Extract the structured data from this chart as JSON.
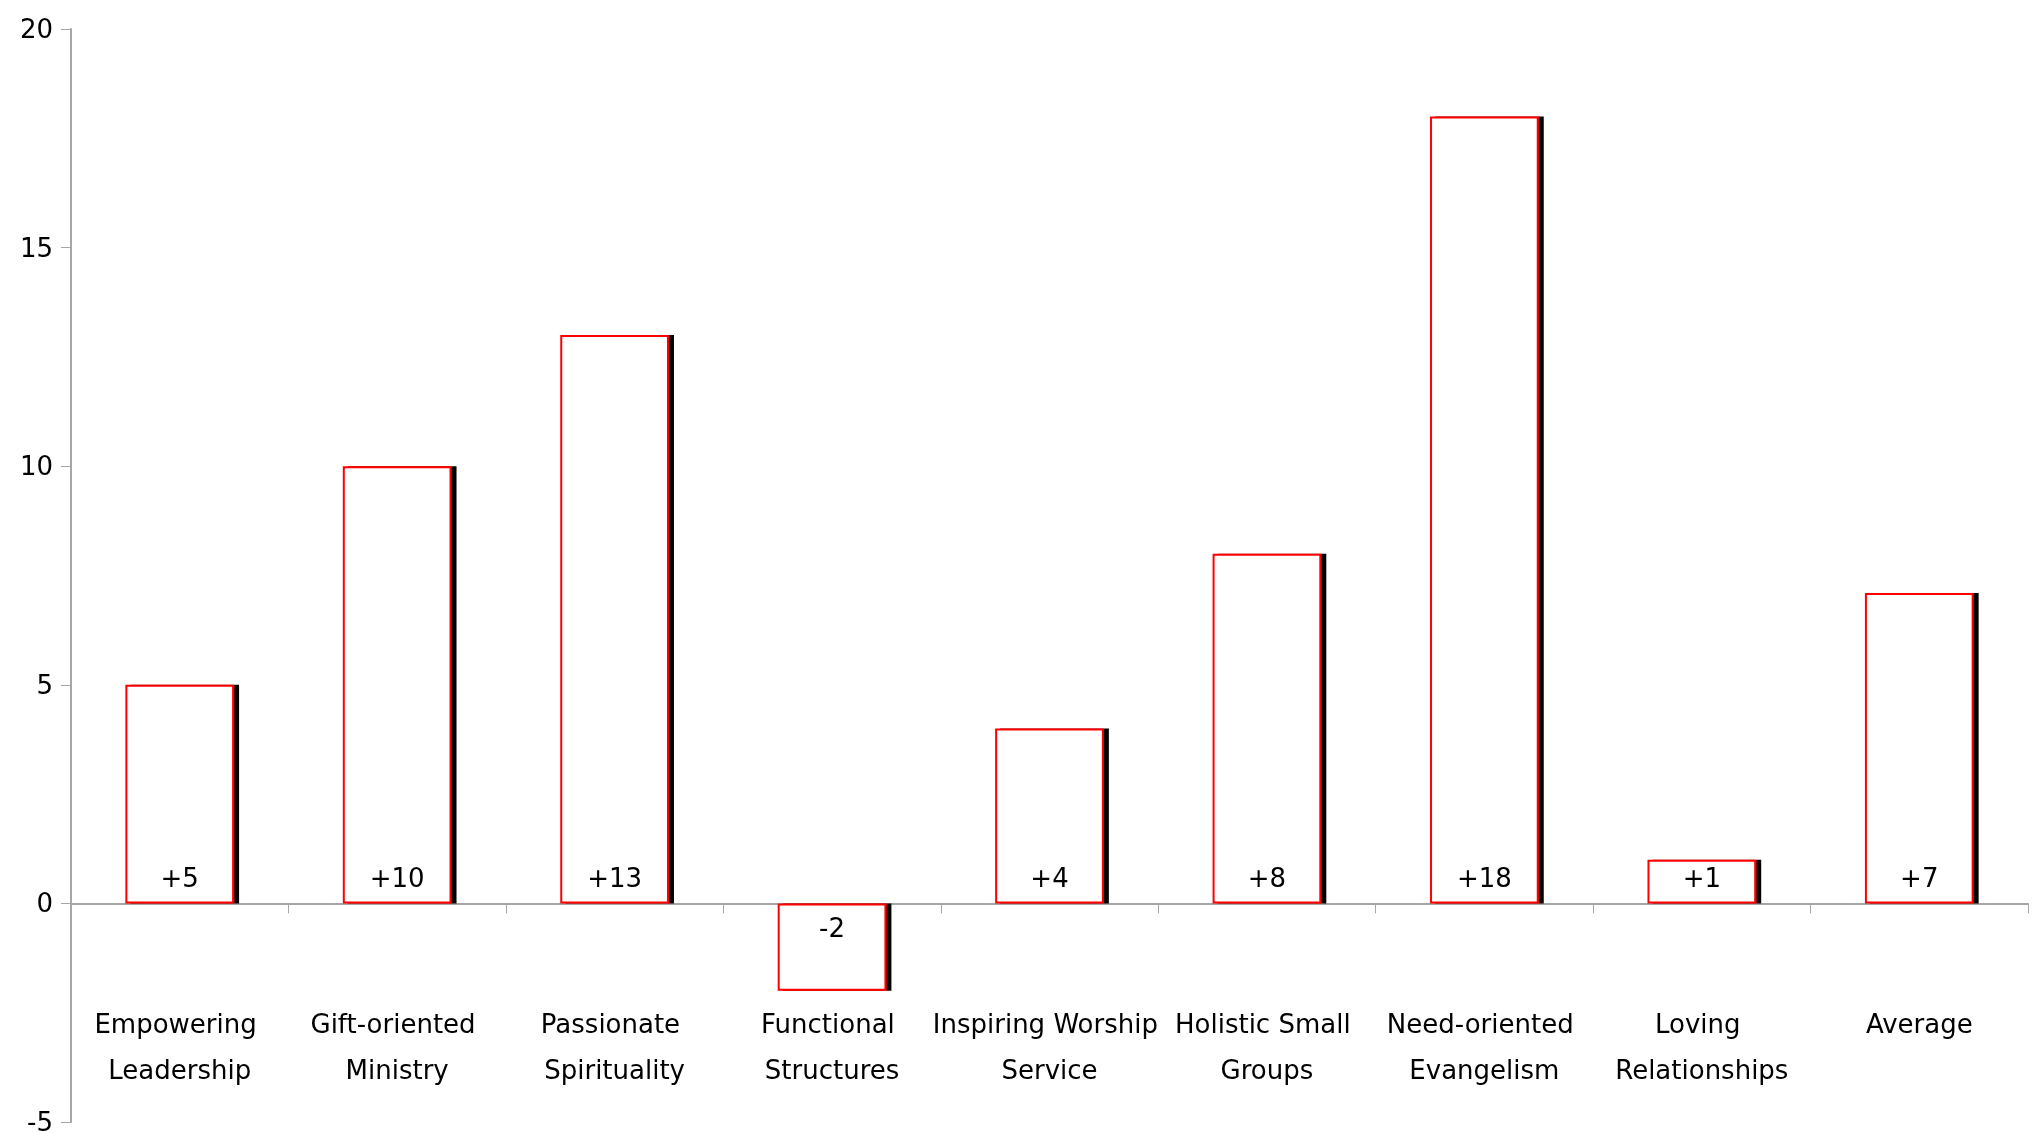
{
  "chart_data": {
    "type": "bar",
    "categories": [
      "Empowering Leadership",
      "Gift-oriented Ministry",
      "Passionate Spirituality",
      "Functional Structures",
      "Inspiring Worship Service",
      "Holistic Small Groups",
      "Need-oriented Evangelism",
      "Loving Relationships",
      "Average"
    ],
    "values": [
      5,
      10,
      13,
      -2,
      4,
      8,
      18,
      1,
      7.1
    ],
    "value_labels": [
      "+5",
      "+10",
      "+13",
      "-2",
      "+4",
      "+8",
      "+18",
      "+1",
      "+7"
    ],
    "color": "#ff0000",
    "ylim": [
      -5,
      20
    ],
    "yticks": [
      -5,
      0,
      5,
      10,
      15,
      20
    ]
  }
}
